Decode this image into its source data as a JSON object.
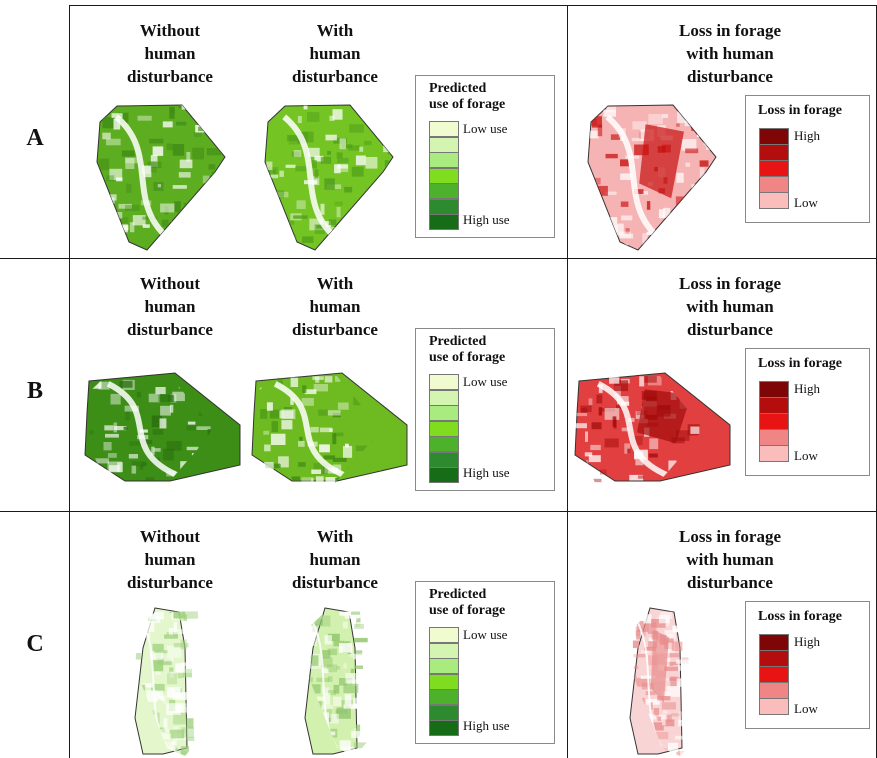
{
  "column_titles": {
    "without": "Without\nhuman\ndisturbance",
    "with": "With\nhuman\ndisturbance",
    "loss": "Loss in forage\nwith human\ndisturbance"
  },
  "legend_use": {
    "title": "Predicted\nuse of forage",
    "low_label": "Low use",
    "high_label": "High use",
    "colors": [
      "#f0fbd0",
      "#d4f5b2",
      "#aaeb80",
      "#7fdc1e",
      "#4db12c",
      "#2e8a2e",
      "#176d17"
    ]
  },
  "legend_loss": {
    "title": "Loss in forage",
    "high_label": "High",
    "low_label": "Low",
    "colors": [
      "#7e0606",
      "#b40d0d",
      "#e81414",
      "#f08585",
      "#fbbcbc"
    ]
  },
  "rows": [
    {
      "label": "A",
      "shape": "pentagon",
      "without_fill": "#5cad1f",
      "with_fill": "#74c424",
      "loss_fill": "#f6b3b3",
      "loss_hot": "#c81010"
    },
    {
      "label": "B",
      "shape": "hexagon",
      "without_fill": "#3c8e17",
      "with_fill": "#6dbb20",
      "loss_fill": "#e24040",
      "loss_hot": "#a30b0b"
    },
    {
      "label": "C",
      "shape": "strip",
      "without_fill": "#e4f7cc",
      "with_fill": "#d2f0ae",
      "loss_fill": "#f9d4d4",
      "loss_hot": "#e88a8a"
    }
  ]
}
